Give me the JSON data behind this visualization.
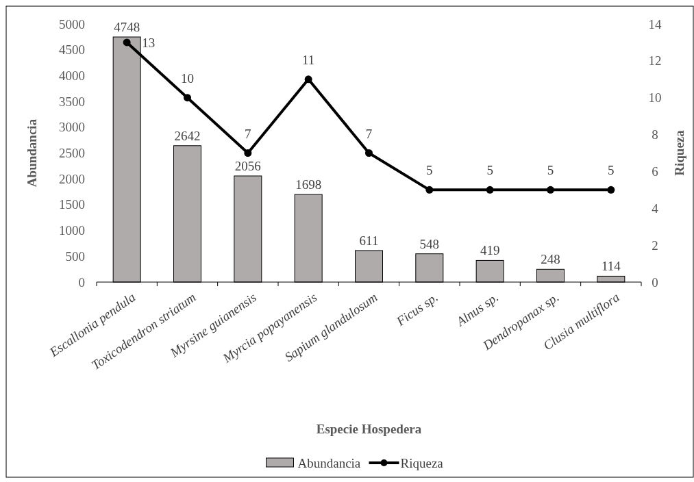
{
  "chart_data": {
    "type": "bar",
    "xlabel": "Especie Hospedera",
    "ylabel": "Abundancia",
    "y2label": "Riqueza",
    "categories": [
      "Escallonia pendula",
      "Toxicodendron striatum",
      "Myrsine guianensis",
      "Myrcia popayanensis",
      "Sapium glandulosum",
      "Ficus sp.",
      "Alnus sp.",
      "Dendropanax sp.",
      "Clusia multiflora"
    ],
    "series": [
      {
        "name": "Abundancia",
        "color": "#afabab",
        "values": [
          4748,
          2642,
          2056,
          1698,
          611,
          548,
          419,
          248,
          114
        ]
      },
      {
        "name": "Riqueza",
        "type": "line",
        "axis": "y2",
        "color": "#000000",
        "marker": "circle",
        "values": [
          13,
          10,
          7,
          11,
          7,
          5,
          5,
          5,
          5
        ]
      }
    ],
    "ylim": [
      0,
      5000
    ],
    "yticks": [
      0,
      500,
      1000,
      1500,
      2000,
      2500,
      3000,
      3500,
      4000,
      4500,
      5000
    ],
    "y2lim": [
      0,
      14
    ],
    "y2ticks": [
      0,
      2,
      4,
      6,
      8,
      10,
      12,
      14
    ],
    "data_labels": true,
    "legend": "bottom",
    "grid": false
  }
}
